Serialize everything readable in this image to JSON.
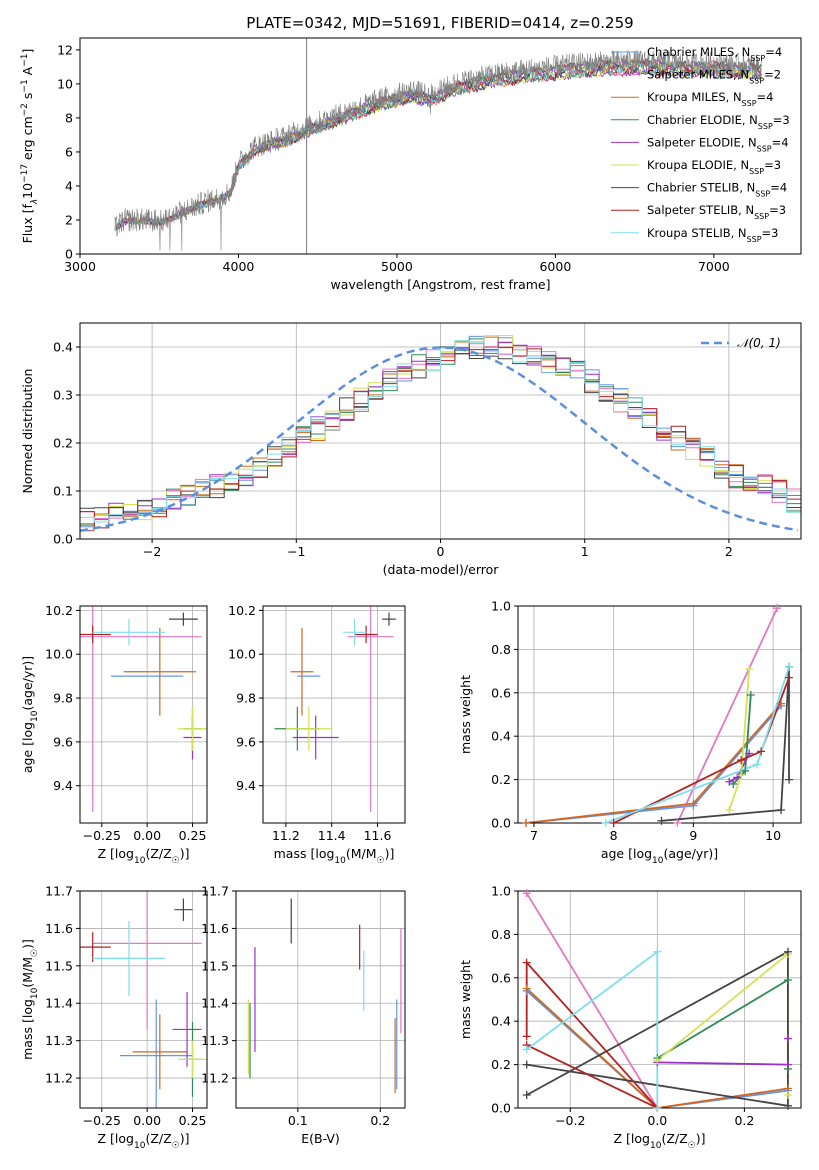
{
  "figure": {
    "title": "PLATE=0342, MJD=51691, FIBERID=0414, z=0.259"
  },
  "colors": {
    "Chabrier MILES": "#6495ed",
    "Salpeter MILES": "#e377c2",
    "Kroupa MILES": "#d2691e",
    "Chabrier ELODIE": "#2e8b57",
    "Salpeter ELODIE": "#9932cc",
    "Kroupa ELODIE": "#d4e157",
    "Chabrier STELIB": "#444444",
    "Salpeter STELIB": "#b22222",
    "Kroupa STELIB": "#80deea"
  },
  "chart_data": [
    {
      "id": "spectrum",
      "type": "line",
      "xlabel": "wavelength [Angstrom, rest frame]",
      "ylabel": "Flux [f_λ10^-17 erg cm^-2 s^-1 A^-1]",
      "xlim": [
        3000,
        7550
      ],
      "ylim": [
        0,
        12.7
      ],
      "xticks": [
        3000,
        4000,
        5000,
        6000,
        7000
      ],
      "yticks": [
        0,
        2,
        4,
        6,
        8,
        10,
        12
      ],
      "grid": false,
      "legend_position": "top-right",
      "data_color": "#808080",
      "vertical_line_x": 4430,
      "continuum_anchors": {
        "x": [
          3220,
          3280,
          3400,
          3520,
          3600,
          3700,
          3800,
          3880,
          3950,
          4000,
          4100,
          4300,
          4500,
          4700,
          4900,
          5100,
          5200,
          5400,
          5600,
          5800,
          6000,
          6200,
          6400,
          6600,
          6800,
          7000,
          7200,
          7300
        ],
        "y": [
          1.5,
          2.0,
          2.0,
          1.9,
          2.3,
          2.7,
          3.1,
          3.3,
          3.7,
          5.3,
          6.3,
          6.9,
          7.7,
          8.4,
          9.1,
          9.6,
          9.3,
          10.1,
          10.5,
          10.8,
          11.0,
          11.2,
          11.3,
          11.3,
          11.2,
          11.2,
          11.1,
          11.0
        ]
      },
      "legend": [
        {
          "label": "Chabrier MILES, N_SSP=4",
          "key": "Chabrier MILES"
        },
        {
          "label": "Salpeter MILES, N_SSP=2",
          "key": "Salpeter MILES"
        },
        {
          "label": "Kroupa MILES, N_SSP=4",
          "key": "Kroupa MILES"
        },
        {
          "label": "Chabrier ELODIE, N_SSP=3",
          "key": "Chabrier ELODIE"
        },
        {
          "label": "Salpeter ELODIE, N_SSP=4",
          "key": "Salpeter ELODIE"
        },
        {
          "label": "Kroupa ELODIE, N_SSP=3",
          "key": "Kroupa ELODIE"
        },
        {
          "label": "Chabrier STELIB, N_SSP=4",
          "key": "Chabrier STELIB"
        },
        {
          "label": "Salpeter STELIB, N_SSP=3",
          "key": "Salpeter STELIB"
        },
        {
          "label": "Kroupa STELIB, N_SSP=3",
          "key": "Kroupa STELIB"
        }
      ]
    },
    {
      "id": "residuals",
      "type": "line",
      "xlabel": "(data-model)/error",
      "ylabel": "Normed distribution",
      "xlim": [
        -2.5,
        2.5
      ],
      "ylim": [
        0,
        0.45
      ],
      "xticks": [
        -2,
        -1,
        0,
        1,
        2
      ],
      "yticks": [
        0.0,
        0.1,
        0.2,
        0.3,
        0.4
      ],
      "grid": true,
      "legend": [
        {
          "label": "𝒩(0, 1)",
          "color": "#5b8fde"
        }
      ],
      "legend_position": "top-right",
      "bin_edges_start": -2.5,
      "bin_width": 0.1,
      "base_histogram": [
        0.04,
        0.04,
        0.05,
        0.05,
        0.06,
        0.07,
        0.08,
        0.09,
        0.1,
        0.11,
        0.12,
        0.13,
        0.15,
        0.17,
        0.19,
        0.21,
        0.23,
        0.25,
        0.27,
        0.29,
        0.31,
        0.33,
        0.35,
        0.36,
        0.37,
        0.38,
        0.39,
        0.4,
        0.4,
        0.4,
        0.39,
        0.38,
        0.37,
        0.36,
        0.35,
        0.33,
        0.31,
        0.29,
        0.27,
        0.25,
        0.23,
        0.21,
        0.19,
        0.17,
        0.15,
        0.13,
        0.12,
        0.11,
        0.1,
        0.08
      ],
      "series_order": [
        "Chabrier MILES",
        "Salpeter MILES",
        "Kroupa MILES",
        "Chabrier ELODIE",
        "Salpeter ELODIE",
        "Kroupa ELODIE",
        "Chabrier STELIB",
        "Salpeter STELIB",
        "Kroupa STELIB"
      ]
    },
    {
      "id": "z-age",
      "type": "scatter",
      "xlabel": "Z [log10(Z/Z☉)]",
      "ylabel": "age  [log10(age/yr)]",
      "xlim": [
        -0.37,
        0.33
      ],
      "ylim": [
        9.23,
        10.22
      ],
      "xticks": [
        -0.25,
        0,
        0.25
      ],
      "xtick_labels": [
        "−0.25",
        "0.00",
        "0.25"
      ],
      "yticks": [
        9.4,
        9.6,
        9.8,
        10.0,
        10.2
      ],
      "grid": true,
      "points": [
        {
          "key": "Chabrier MILES",
          "x": 0.0,
          "xerr": 0.2,
          "y": 9.9,
          "yerr": 0.0
        },
        {
          "key": "Salpeter MILES",
          "x": -0.3,
          "xerr": 0.6,
          "y": 10.08,
          "yerr": 0.8
        },
        {
          "key": "Kroupa MILES",
          "x": 0.07,
          "xerr": 0.2,
          "y": 9.92,
          "yerr": 0.2
        },
        {
          "key": "Chabrier ELODIE",
          "x": 0.25,
          "xerr": 0.05,
          "y": 9.66,
          "yerr": 0.1
        },
        {
          "key": "Salpeter ELODIE",
          "x": 0.25,
          "xerr": 0.05,
          "y": 9.62,
          "yerr": 0.1
        },
        {
          "key": "Kroupa ELODIE",
          "x": 0.25,
          "xerr": 0.08,
          "y": 9.66,
          "yerr": 0.1
        },
        {
          "key": "Chabrier STELIB",
          "x": 0.2,
          "xerr": 0.08,
          "y": 10.16,
          "yerr": 0.03
        },
        {
          "key": "Salpeter STELIB",
          "x": -0.3,
          "xerr": 0.1,
          "y": 10.09,
          "yerr": 0.04
        },
        {
          "key": "Kroupa STELIB",
          "x": -0.1,
          "xerr": 0.2,
          "y": 10.1,
          "yerr": 0.06
        }
      ]
    },
    {
      "id": "mass-age",
      "type": "scatter",
      "xlabel": "mass [log10(M/M☉)]",
      "ylabel": "",
      "xlim": [
        11.1,
        11.72
      ],
      "ylim": [
        9.23,
        10.22
      ],
      "xticks": [
        11.2,
        11.4,
        11.6
      ],
      "yticks": [
        9.4,
        9.6,
        9.8,
        10.0,
        10.2
      ],
      "grid": true,
      "points": [
        {
          "key": "Chabrier MILES",
          "x": 11.3,
          "xerr": 0.05,
          "y": 9.9,
          "yerr": 0.0
        },
        {
          "key": "Salpeter MILES",
          "x": 11.57,
          "xerr": 0.1,
          "y": 10.08,
          "yerr": 0.8
        },
        {
          "key": "Kroupa MILES",
          "x": 11.27,
          "xerr": 0.05,
          "y": 9.92,
          "yerr": 0.2
        },
        {
          "key": "Chabrier ELODIE",
          "x": 11.25,
          "xerr": 0.1,
          "y": 9.66,
          "yerr": 0.1
        },
        {
          "key": "Salpeter ELODIE",
          "x": 11.33,
          "xerr": 0.1,
          "y": 9.62,
          "yerr": 0.1
        },
        {
          "key": "Kroupa ELODIE",
          "x": 11.3,
          "xerr": 0.1,
          "y": 9.66,
          "yerr": 0.1
        },
        {
          "key": "Chabrier STELIB",
          "x": 11.65,
          "xerr": 0.03,
          "y": 10.16,
          "yerr": 0.03
        },
        {
          "key": "Salpeter STELIB",
          "x": 11.55,
          "xerr": 0.05,
          "y": 10.09,
          "yerr": 0.04
        },
        {
          "key": "Kroupa STELIB",
          "x": 11.5,
          "xerr": 0.05,
          "y": 10.1,
          "yerr": 0.06
        }
      ]
    },
    {
      "id": "age-weight",
      "type": "line",
      "xlabel": "age  [log10(age/yr)]",
      "ylabel": "mass weight",
      "xlim": [
        6.8,
        10.35
      ],
      "ylim": [
        0,
        1
      ],
      "xticks": [
        7,
        8,
        9,
        10
      ],
      "yticks": [
        0.0,
        0.2,
        0.4,
        0.6,
        0.8,
        1.0
      ],
      "grid": true,
      "series": [
        {
          "key": "Chabrier MILES",
          "x": [
            6.9,
            9.0,
            10.1
          ],
          "y": [
            0.0,
            0.08,
            0.54
          ]
        },
        {
          "key": "Salpeter MILES",
          "x": [
            8.8,
            10.05
          ],
          "y": [
            0.0,
            0.99
          ]
        },
        {
          "key": "Kroupa MILES",
          "x": [
            6.9,
            9.0,
            10.1
          ],
          "y": [
            0.0,
            0.09,
            0.55
          ]
        },
        {
          "key": "Chabrier ELODIE",
          "x": [
            9.5,
            9.65,
            9.72
          ],
          "y": [
            0.18,
            0.24,
            0.59
          ]
        },
        {
          "key": "Salpeter ELODIE",
          "x": [
            9.45,
            9.55,
            9.7
          ],
          "y": [
            0.19,
            0.21,
            0.32
          ]
        },
        {
          "key": "Kroupa ELODIE",
          "x": [
            9.45,
            9.6,
            9.7
          ],
          "y": [
            0.06,
            0.22,
            0.71
          ]
        },
        {
          "key": "Chabrier STELIB",
          "x": [
            8.6,
            10.1,
            10.2,
            10.2
          ],
          "y": [
            0.01,
            0.06,
            0.72,
            0.2
          ]
        },
        {
          "key": "Salpeter STELIB",
          "x": [
            8.0,
            9.6,
            9.85,
            10.2
          ],
          "y": [
            0.0,
            0.29,
            0.33,
            0.67
          ]
        },
        {
          "key": "Kroupa STELIB",
          "x": [
            7.9,
            9.8,
            10.2
          ],
          "y": [
            0.0,
            0.27,
            0.72
          ]
        }
      ]
    },
    {
      "id": "z-mass",
      "type": "scatter",
      "xlabel": "Z [log10(Z/Z☉)]",
      "ylabel": "mass [log10(M/M☉)]",
      "xlim": [
        -0.37,
        0.33
      ],
      "ylim": [
        11.12,
        11.7
      ],
      "xticks": [
        -0.25,
        0,
        0.25
      ],
      "xtick_labels": [
        "−0.25",
        "0.00",
        "0.25"
      ],
      "yticks": [
        11.2,
        11.3,
        11.4,
        11.5,
        11.6,
        11.7
      ],
      "grid": true,
      "points": [
        {
          "key": "Chabrier MILES",
          "x": 0.05,
          "xerr": 0.2,
          "y": 11.26,
          "yerr": 0.15
        },
        {
          "key": "Salpeter MILES",
          "x": 0.0,
          "xerr": 0.3,
          "y": 11.56,
          "yerr": 0.23
        },
        {
          "key": "Kroupa MILES",
          "x": 0.07,
          "xerr": 0.15,
          "y": 11.27,
          "yerr": 0.1
        },
        {
          "key": "Chabrier ELODIE",
          "x": 0.25,
          "xerr": 0.05,
          "y": 11.25,
          "yerr": 0.1
        },
        {
          "key": "Salpeter ELODIE",
          "x": 0.22,
          "xerr": 0.08,
          "y": 11.33,
          "yerr": 0.1
        },
        {
          "key": "Kroupa ELODIE",
          "x": 0.25,
          "xerr": 0.08,
          "y": 11.25,
          "yerr": 0.05
        },
        {
          "key": "Chabrier STELIB",
          "x": 0.2,
          "xerr": 0.05,
          "y": 11.65,
          "yerr": 0.03
        },
        {
          "key": "Salpeter STELIB",
          "x": -0.3,
          "xerr": 0.1,
          "y": 11.55,
          "yerr": 0.04
        },
        {
          "key": "Kroupa STELIB",
          "x": -0.1,
          "xerr": 0.2,
          "y": 11.52,
          "yerr": 0.1
        }
      ]
    },
    {
      "id": "ebv-mass",
      "type": "scatter",
      "xlabel": "E(B-V)",
      "ylabel": "",
      "xlim": [
        0.025,
        0.23
      ],
      "ylim": [
        11.12,
        11.7
      ],
      "xticks": [
        0.1,
        0.2
      ],
      "yticks": [
        11.2,
        11.3,
        11.4,
        11.5,
        11.6,
        11.7
      ],
      "grid": true,
      "points": [
        {
          "key": "Chabrier MILES",
          "x": 0.22,
          "xerr": 0,
          "y": 11.29,
          "yerr": 0.12
        },
        {
          "key": "Salpeter MILES",
          "x": 0.225,
          "xerr": 0,
          "y": 11.46,
          "yerr": 0.14
        },
        {
          "key": "Kroupa MILES",
          "x": 0.218,
          "xerr": 0,
          "y": 11.26,
          "yerr": 0.1
        },
        {
          "key": "Chabrier ELODIE",
          "x": 0.042,
          "xerr": 0,
          "y": 11.3,
          "yerr": 0.1
        },
        {
          "key": "Salpeter ELODIE",
          "x": 0.048,
          "xerr": 0,
          "y": 11.41,
          "yerr": 0.14
        },
        {
          "key": "Kroupa ELODIE",
          "x": 0.04,
          "xerr": 0,
          "y": 11.31,
          "yerr": 0.1
        },
        {
          "key": "Chabrier STELIB",
          "x": 0.092,
          "xerr": 0,
          "y": 11.62,
          "yerr": 0.06
        },
        {
          "key": "Salpeter STELIB",
          "x": 0.175,
          "xerr": 0,
          "y": 11.55,
          "yerr": 0.06
        },
        {
          "key": "Kroupa STELIB",
          "x": 0.18,
          "xerr": 0,
          "y": 11.46,
          "yerr": 0.08
        }
      ]
    },
    {
      "id": "z-weight",
      "type": "line",
      "xlabel": "Z [log10(Z/Z☉)]",
      "ylabel": "mass weight",
      "xlim": [
        -0.32,
        0.33
      ],
      "ylim": [
        0,
        1
      ],
      "xticks": [
        -0.2,
        0.0,
        0.2
      ],
      "xtick_labels": [
        "−0.2",
        "0.0",
        "0.2"
      ],
      "yticks": [
        0.0,
        0.2,
        0.4,
        0.6,
        0.8,
        1.0
      ],
      "grid": true,
      "series": [
        {
          "key": "Chabrier MILES",
          "x": [
            -0.3,
            0.0,
            0.3
          ],
          "y": [
            0.54,
            0.0,
            0.08
          ]
        },
        {
          "key": "Salpeter MILES",
          "x": [
            -0.3,
            0.0
          ],
          "y": [
            0.99,
            0.0
          ]
        },
        {
          "key": "Kroupa MILES",
          "x": [
            -0.3,
            0.0,
            0.3
          ],
          "y": [
            0.55,
            0.0,
            0.09
          ]
        },
        {
          "key": "Chabrier ELODIE",
          "x": [
            0.0,
            0.3,
            0.3
          ],
          "y": [
            0.23,
            0.59,
            0.18
          ]
        },
        {
          "key": "Salpeter ELODIE",
          "x": [
            0.0,
            0.3,
            0.3
          ],
          "y": [
            0.21,
            0.2,
            0.32
          ]
        },
        {
          "key": "Kroupa ELODIE",
          "x": [
            0.0,
            0.3,
            0.3
          ],
          "y": [
            0.22,
            0.71,
            0.06
          ]
        },
        {
          "key": "Chabrier STELIB",
          "x": [
            -0.3,
            0.3,
            0.3,
            -0.3
          ],
          "y": [
            0.06,
            0.72,
            0.01,
            0.2
          ]
        },
        {
          "key": "Salpeter STELIB",
          "x": [
            -0.3,
            -0.3,
            0.0,
            -0.3
          ],
          "y": [
            0.33,
            0.67,
            0.0,
            0.29
          ]
        },
        {
          "key": "Kroupa STELIB",
          "x": [
            -0.3,
            0.0,
            0.0
          ],
          "y": [
            0.27,
            0.72,
            0.0
          ]
        }
      ]
    }
  ]
}
